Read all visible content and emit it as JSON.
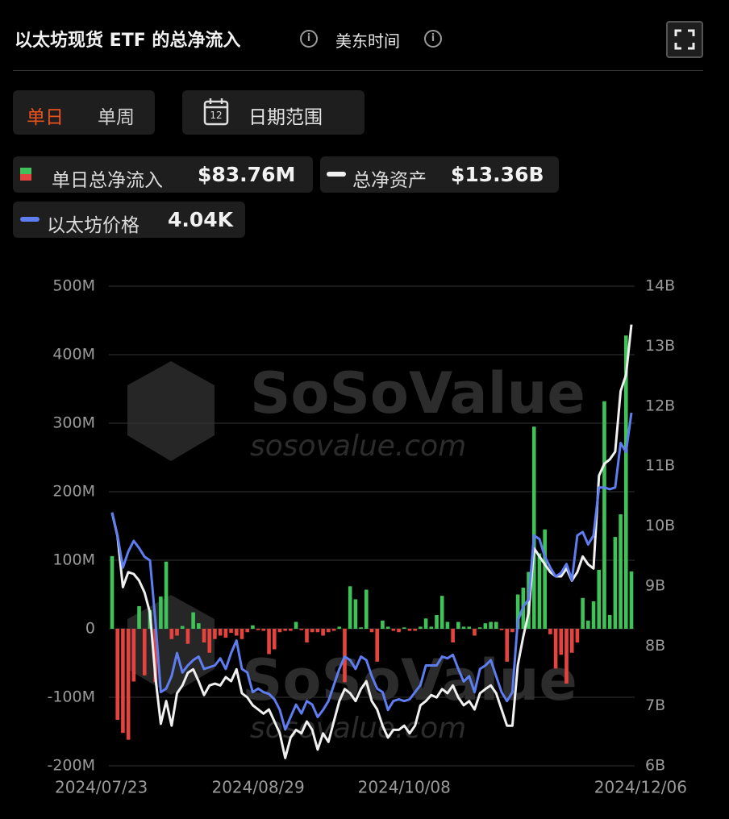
{
  "header": {
    "title": "以太坊现货 ETF 的总净流入",
    "timezone": "美东时间"
  },
  "tabs": {
    "items": [
      "单日",
      "单周"
    ],
    "active": 0,
    "date_range": "日期范围",
    "calendar_day": "12"
  },
  "watermark": {
    "brand": "SoSoValue",
    "url": "sosovalue.com"
  },
  "chart_data": {
    "type": "combo",
    "categories": [
      "2024/07/23",
      null,
      null,
      null,
      null,
      null,
      null,
      null,
      null,
      null,
      null,
      null,
      null,
      null,
      null,
      null,
      null,
      null,
      null,
      null,
      null,
      null,
      null,
      null,
      null,
      null,
      null,
      "2024/08/29",
      null,
      null,
      null,
      null,
      null,
      null,
      null,
      null,
      null,
      null,
      null,
      null,
      null,
      null,
      null,
      null,
      null,
      null,
      null,
      null,
      null,
      null,
      null,
      null,
      null,
      null,
      "2024/10/08",
      null,
      null,
      null,
      null,
      null,
      null,
      null,
      null,
      null,
      null,
      null,
      null,
      null,
      null,
      null,
      null,
      null,
      null,
      null,
      null,
      null,
      null,
      null,
      null,
      null,
      null,
      null,
      null,
      null,
      null,
      null,
      null,
      null,
      null,
      null,
      null,
      null,
      null,
      null,
      null,
      null,
      "2024/12/06"
    ],
    "ylim": [
      -200,
      500
    ],
    "yticks": [
      {
        "value": 500,
        "label": "500M"
      },
      {
        "value": 400,
        "label": "400M"
      },
      {
        "value": 300,
        "label": "300M"
      },
      {
        "value": 200,
        "label": "200M"
      },
      {
        "value": 100,
        "label": "100M"
      },
      0,
      {
        "value": -100,
        "label": "-100M"
      },
      {
        "value": -200,
        "label": "-200M"
      }
    ],
    "y2lim": [
      6,
      14
    ],
    "y2ticks": [
      {
        "value": 14,
        "label": "14B"
      },
      {
        "value": 13,
        "label": "13B"
      },
      {
        "value": 12,
        "label": "12B"
      },
      {
        "value": 11,
        "label": "11B"
      },
      {
        "value": 10,
        "label": "10B"
      },
      {
        "value": 9,
        "label": "9B"
      },
      {
        "value": 8,
        "label": "8B"
      },
      {
        "value": 7,
        "label": "7B"
      },
      {
        "value": 6,
        "label": "6B"
      }
    ],
    "grid": true,
    "series": [
      {
        "name": "单日总净流入",
        "type": "bar",
        "color": "#3fc258",
        "negative_color": "#e6433f",
        "legend_value": "$83.76M",
        "values": [
          106,
          -133,
          -152,
          -162,
          -77,
          33,
          -68,
          27,
          -78,
          47,
          98,
          -15,
          -10,
          4,
          -22,
          24,
          8,
          -20,
          -35,
          -15,
          -10,
          -13,
          -6,
          -10,
          -15,
          -5,
          5,
          -2,
          -3,
          -37,
          -30,
          -5,
          -3,
          -3,
          10,
          -2,
          -20,
          -5,
          -5,
          -10,
          -5,
          -3,
          3,
          -78,
          62,
          43,
          2,
          57,
          -5,
          -48,
          12,
          3,
          -3,
          -5,
          2,
          -3,
          -3,
          3,
          15,
          3,
          20,
          48,
          10,
          -20,
          10,
          3,
          3,
          -10,
          2,
          8,
          10,
          10,
          -2,
          -48,
          -5,
          50,
          60,
          83,
          295,
          110,
          145,
          -8,
          -58,
          -38,
          -80,
          -35,
          -20,
          45,
          12,
          40,
          86,
          332,
          20,
          134,
          167,
          428,
          83.76
        ]
      },
      {
        "name": "总净资产",
        "type": "line",
        "axis": "y2",
        "color": "#f0f0f0",
        "legend_value": "$13.36B",
        "values": [
          10.22,
          9.83,
          8.98,
          9.23,
          9.2,
          9.09,
          8.89,
          8.55,
          7.48,
          6.7,
          7.08,
          6.67,
          7.21,
          7.34,
          7.55,
          7.61,
          7.41,
          7.18,
          7.34,
          7.37,
          7.34,
          7.48,
          7.41,
          7.61,
          7.21,
          7.14,
          7.01,
          6.94,
          6.87,
          6.94,
          6.74,
          6.54,
          6.13,
          6.47,
          6.6,
          6.54,
          6.74,
          6.6,
          6.27,
          6.54,
          6.4,
          6.74,
          7.08,
          7.28,
          7.21,
          7.08,
          7.28,
          7.41,
          7.08,
          6.94,
          6.67,
          6.47,
          6.6,
          6.6,
          6.67,
          6.54,
          6.67,
          7.01,
          7.08,
          7.18,
          7.14,
          7.28,
          7.21,
          7.34,
          7.14,
          7.01,
          7.08,
          6.94,
          7.21,
          7.28,
          7.34,
          7.21,
          6.94,
          6.67,
          6.67,
          7.68,
          8.15,
          8.55,
          9.63,
          9.49,
          9.36,
          9.23,
          9.16,
          9.16,
          9.29,
          9.09,
          9.23,
          9.49,
          9.36,
          9.29,
          10.84,
          11.04,
          11.11,
          11.24,
          12.25,
          12.52,
          13.36
        ]
      },
      {
        "name": "以太坊价格",
        "type": "line",
        "axis": "none",
        "color": "#5e7df0",
        "legend_value": "4.04K",
        "values": [
          3.48,
          3.35,
          3.17,
          3.26,
          3.32,
          3.28,
          3.23,
          3.21,
          2.87,
          2.47,
          2.49,
          2.56,
          2.69,
          2.58,
          2.62,
          2.65,
          2.67,
          2.6,
          2.61,
          2.62,
          2.66,
          2.6,
          2.69,
          2.76,
          2.6,
          2.58,
          2.47,
          2.49,
          2.47,
          2.46,
          2.43,
          2.37,
          2.26,
          2.33,
          2.4,
          2.35,
          2.42,
          2.4,
          2.33,
          2.37,
          2.42,
          2.51,
          2.6,
          2.67,
          2.65,
          2.6,
          2.67,
          2.65,
          2.56,
          2.49,
          2.47,
          2.37,
          2.42,
          2.43,
          2.42,
          2.43,
          2.47,
          2.51,
          2.62,
          2.62,
          2.62,
          2.67,
          2.66,
          2.68,
          2.6,
          2.53,
          2.56,
          2.47,
          2.6,
          2.62,
          2.65,
          2.56,
          2.47,
          2.42,
          2.47,
          2.87,
          2.95,
          2.99,
          3.35,
          3.33,
          3.23,
          3.17,
          3.12,
          3.14,
          3.19,
          3.1,
          3.35,
          3.37,
          3.3,
          3.35,
          3.62,
          3.62,
          3.61,
          3.62,
          3.87,
          3.82,
          4.04
        ]
      }
    ]
  }
}
